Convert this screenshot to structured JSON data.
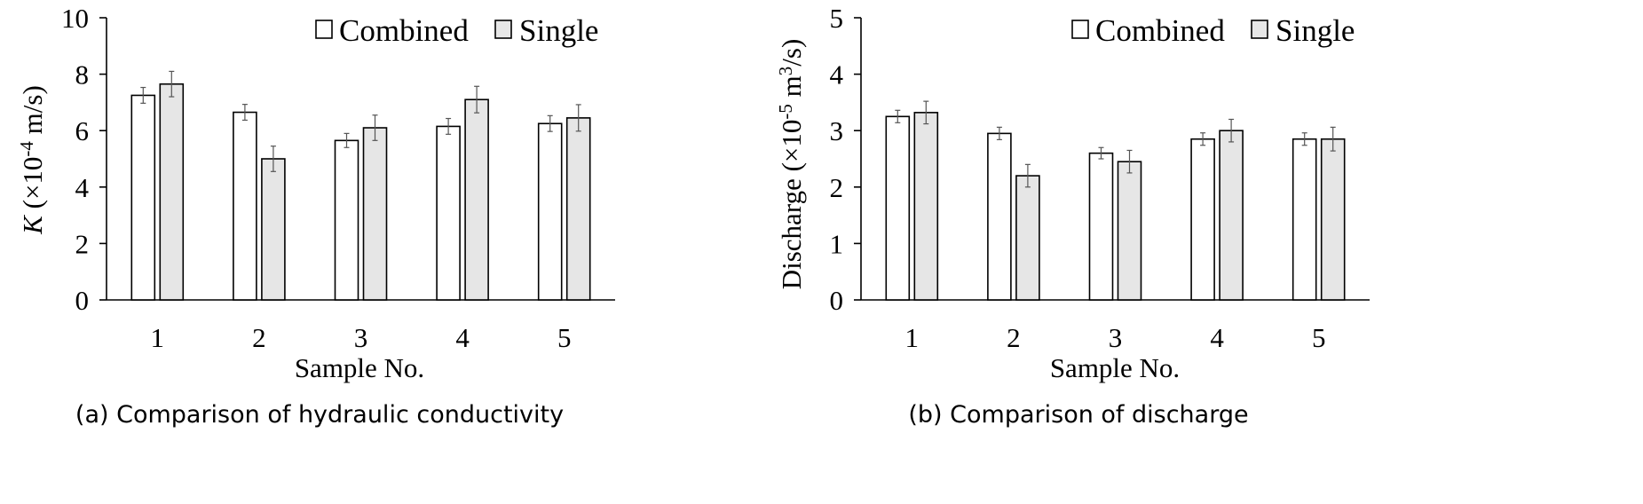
{
  "colors": {
    "combined_fill": "#ffffff",
    "single_fill": "#e6e6e6",
    "stroke": "#000000",
    "error_bar": "#555555"
  },
  "chart_data": [
    {
      "type": "bar",
      "caption": "(a) Comparison of hydraulic conductivity",
      "xlabel": "Sample No.",
      "ylabel_symbol": "K",
      "ylabel_open": " (×10",
      "ylabel_exp": "-4",
      "ylabel_close": " m/s)",
      "categories": [
        "1",
        "2",
        "3",
        "4",
        "5"
      ],
      "ylim": [
        0,
        10
      ],
      "yticks": [
        0,
        2,
        4,
        6,
        8,
        10
      ],
      "legend_position": "top-right",
      "series": [
        {
          "name": "Combined",
          "values": [
            7.25,
            6.65,
            5.65,
            6.15,
            6.25
          ],
          "errors": [
            0.28,
            0.28,
            0.25,
            0.28,
            0.28
          ]
        },
        {
          "name": "Single",
          "values": [
            7.65,
            5.0,
            6.1,
            7.1,
            6.45
          ],
          "errors": [
            0.45,
            0.45,
            0.45,
            0.47,
            0.47
          ]
        }
      ]
    },
    {
      "type": "bar",
      "caption": "(b) Comparison of discharge",
      "xlabel": "Sample No.",
      "ylabel_symbol": "Discharge",
      "ylabel_open": " (×10",
      "ylabel_exp": "-5",
      "ylabel_mid": " m",
      "ylabel_exp2": "3",
      "ylabel_close": "/s)",
      "categories": [
        "1",
        "2",
        "3",
        "4",
        "5"
      ],
      "ylim": [
        0,
        5
      ],
      "yticks": [
        0,
        1,
        2,
        3,
        4,
        5
      ],
      "legend_position": "top-right",
      "series": [
        {
          "name": "Combined",
          "values": [
            3.25,
            2.95,
            2.6,
            2.85,
            2.85
          ],
          "errors": [
            0.11,
            0.11,
            0.1,
            0.11,
            0.11
          ]
        },
        {
          "name": "Single",
          "values": [
            3.32,
            2.2,
            2.45,
            3.0,
            2.85
          ],
          "errors": [
            0.2,
            0.2,
            0.2,
            0.2,
            0.21
          ]
        }
      ]
    }
  ]
}
